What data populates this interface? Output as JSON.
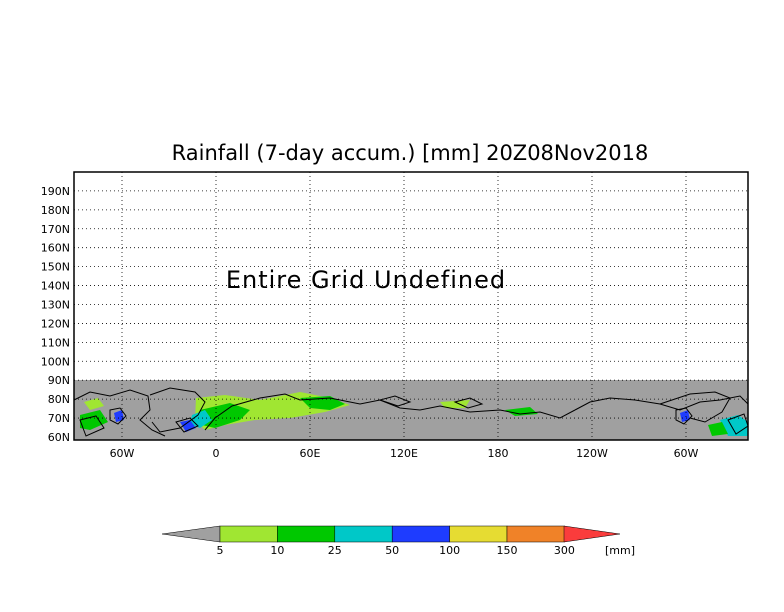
{
  "title": "Rainfall (7-day accum.) [mm] 20Z08Nov2018",
  "message": "Entire Grid Undefined",
  "lat_labels": [
    "190N",
    "180N",
    "170N",
    "160N",
    "150N",
    "140N",
    "130N",
    "120N",
    "110N",
    "100N",
    "90N",
    "80N",
    "70N",
    "60N"
  ],
  "lon_labels": [
    "60W",
    "0",
    "60E",
    "120E",
    "180",
    "120W",
    "60W"
  ],
  "colorbar": {
    "labels": [
      "5",
      "10",
      "25",
      "50",
      "100",
      "150",
      "300"
    ],
    "unit": "[mm]",
    "below_color": "#a0a0a0",
    "colors": [
      "#a0e632",
      "#00c800",
      "#00c8c8",
      "#1e3cff",
      "#e6dc32",
      "#f08228",
      "#fa3c3c"
    ]
  },
  "colors": {
    "undefined_fill": "#a0a0a0",
    "land_light_green": "#a0e632",
    "land_green": "#00c800",
    "land_cyan": "#00c8c8",
    "land_blue": "#1e3cff"
  }
}
